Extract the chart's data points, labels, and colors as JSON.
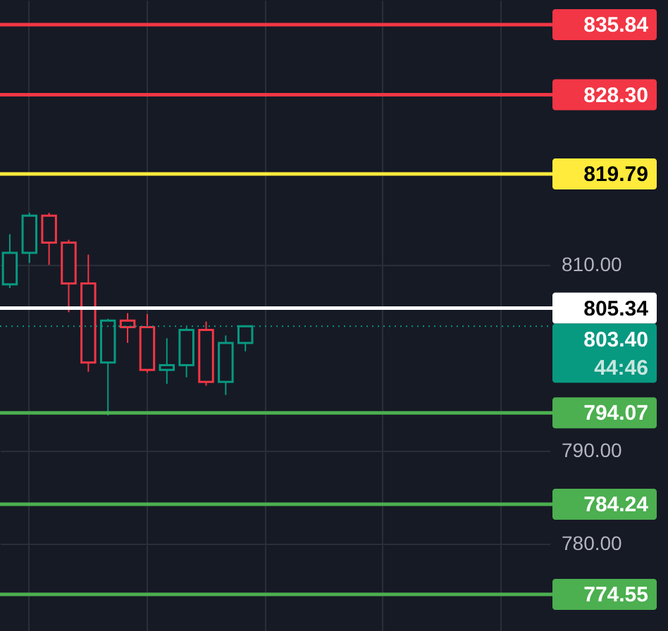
{
  "chart_data": {
    "type": "candlestick",
    "categories": [
      null,
      null,
      null,
      null,
      null,
      null,
      null,
      null,
      null,
      null,
      null,
      null,
      null,
      null,
      null,
      null,
      null,
      null,
      null,
      null,
      null,
      null,
      null,
      null,
      null,
      null,
      null,
      null
    ],
    "ohlc": [
      [
        807.9,
        813.3,
        807.5,
        811.3
      ],
      [
        811.3,
        815.6,
        810.2,
        815.3
      ],
      [
        815.3,
        815.6,
        810.0,
        812.4
      ],
      [
        812.4,
        812.7,
        804.9,
        808.0
      ],
      [
        808.0,
        811.1,
        798.5,
        799.5
      ],
      [
        799.5,
        804.2,
        793.8,
        804.0
      ],
      [
        804.0,
        804.8,
        801.6,
        803.3
      ],
      [
        803.3,
        804.7,
        798.4,
        798.7
      ],
      [
        798.7,
        802.1,
        797.2,
        799.2
      ],
      [
        799.2,
        803.3,
        797.9,
        803.0
      ],
      [
        803.0,
        803.9,
        797.0,
        797.4
      ],
      [
        797.4,
        802.4,
        796.0,
        801.6
      ],
      [
        801.6,
        803.4,
        800.7,
        803.4
      ],
      null,
      null,
      null,
      null,
      null,
      null,
      null,
      null,
      null,
      null,
      null,
      null,
      null,
      null,
      null
    ],
    "colors": [
      "#089981",
      "#089981",
      "#f23645",
      "#f23645",
      "#f23645",
      "#089981",
      "#f23645",
      "#f23645",
      "#089981",
      "#089981",
      "#f23645",
      "#089981",
      "#089981",
      null,
      null,
      null,
      null,
      null,
      null,
      null,
      null,
      null,
      null,
      null,
      null,
      null,
      null,
      null
    ],
    "ylim": [
      770.6,
      838.5
    ],
    "yticks": [
      {
        "value": 780,
        "label": "780.00"
      },
      {
        "value": 790,
        "label": "790.00"
      },
      {
        "value": 810,
        "label": "810.00"
      }
    ],
    "tick_labels": "y",
    "grid": true,
    "ref_lines": [
      {
        "axis": "y",
        "value": 835.84,
        "label": "835.84",
        "color": "#f23645"
      },
      {
        "axis": "y",
        "value": 828.3,
        "label": "828.30",
        "color": "#f23645"
      },
      {
        "axis": "y",
        "value": 819.79,
        "label": "819.79",
        "color": "#ffeb3b"
      },
      {
        "axis": "y",
        "value": 805.34,
        "label": "805.34",
        "color": "#ffffff"
      },
      {
        "axis": "y",
        "value": 803.4,
        "label": "803.40",
        "color": "#089981",
        "line_style": "dotted"
      },
      {
        "axis": "y",
        "value": 794.07,
        "label": "794.07",
        "color": "#4caf50"
      },
      {
        "axis": "y",
        "value": 784.24,
        "label": "784.24",
        "color": "#4caf50"
      },
      {
        "axis": "y",
        "value": 774.55,
        "label": "774.55",
        "color": "#4caf50"
      }
    ],
    "annotations": [
      "44:46"
    ]
  }
}
